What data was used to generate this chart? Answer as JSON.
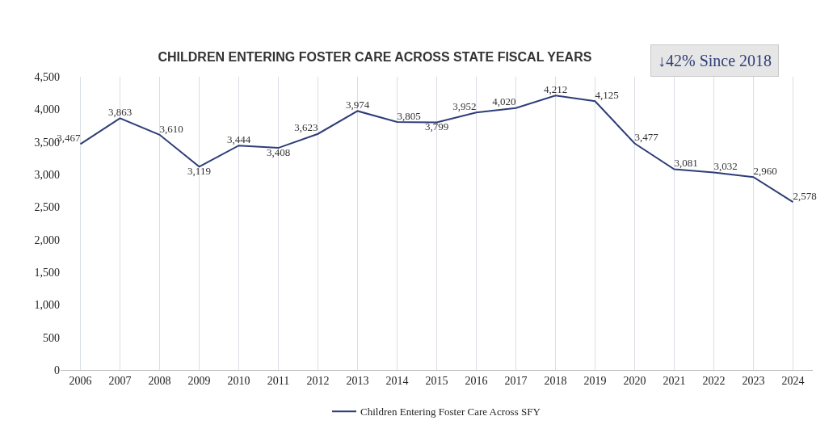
{
  "chart_data": {
    "type": "line",
    "title": "CHILDREN ENTERING FOSTER CARE ACROSS STATE FISCAL YEARS",
    "categories": [
      "2006",
      "2007",
      "2008",
      "2009",
      "2010",
      "2011",
      "2012",
      "2013",
      "2014",
      "2015",
      "2016",
      "2017",
      "2018",
      "2019",
      "2020",
      "2021",
      "2022",
      "2023",
      "2024"
    ],
    "series": [
      {
        "name": "Children Entering Foster Care Across SFY",
        "color": "#2e3d78",
        "values": [
          3467,
          3863,
          3610,
          3119,
          3444,
          3408,
          3623,
          3974,
          3805,
          3799,
          3952,
          4020,
          4212,
          4125,
          3477,
          3081,
          3032,
          2960,
          2578
        ],
        "value_labels": [
          "3,467",
          "3,863",
          "3,610",
          "3,119",
          "3,444",
          "3,408",
          "3,623",
          "3,974",
          "3,805",
          "3,799",
          "3,952",
          "4,020",
          "4,212",
          "4,125",
          "3,477",
          "3,081",
          "3,032",
          "2,960",
          "2,578"
        ]
      }
    ],
    "ylim": [
      0,
      4500
    ],
    "yticks": [
      {
        "value": 0,
        "label": "0"
      },
      {
        "value": 500,
        "label": "500"
      },
      {
        "value": 1000,
        "label": "1,000"
      },
      {
        "value": 1500,
        "label": "1,500"
      },
      {
        "value": 2000,
        "label": "2,000"
      },
      {
        "value": 2500,
        "label": "2,500"
      },
      {
        "value": 3000,
        "label": "3,000"
      },
      {
        "value": 3500,
        "label": "3,500"
      },
      {
        "value": 4000,
        "label": "4,000"
      },
      {
        "value": 4500,
        "label": "4,500"
      }
    ],
    "grid": "x",
    "legend": "bottom",
    "marker": "none",
    "line_style": "solid",
    "annotations": [
      "↓42% Since 2018"
    ]
  }
}
